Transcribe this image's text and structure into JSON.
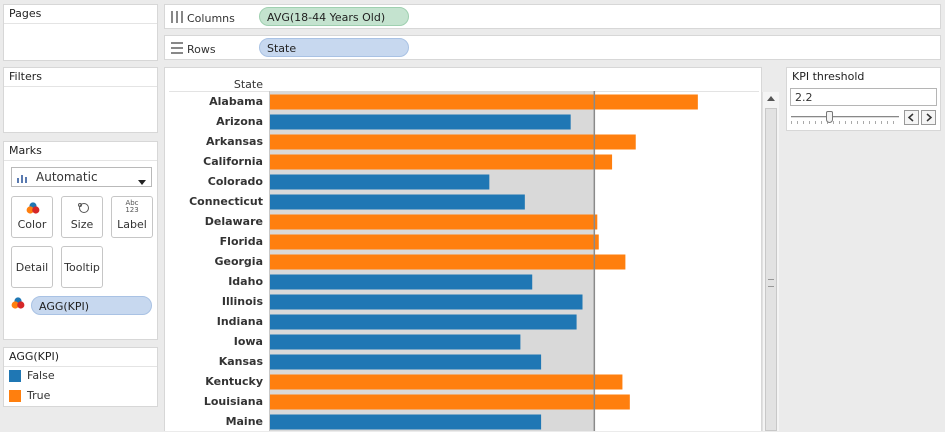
{
  "left_panel": {
    "pages_title": "Pages",
    "filters_title": "Filters",
    "marks_title": "Marks",
    "mark_type": "Automatic",
    "mark_buttons": {
      "color": "Color",
      "size": "Size",
      "label": "Label",
      "detail": "Detail",
      "tooltip": "Tooltip"
    },
    "label_icon_text": "Abc\n123",
    "color_field": "AGG(KPI)"
  },
  "legend": {
    "title": "AGG(KPI)",
    "items": [
      {
        "label": "False",
        "color": "#1f77b4"
      },
      {
        "label": "True",
        "color": "#ff7f0e"
      }
    ]
  },
  "shelves": {
    "columns_label": "Columns",
    "columns_pill": "AVG(18-44 Years Old)",
    "rows_label": "Rows",
    "rows_pill": "State"
  },
  "parameter": {
    "title": "KPI threshold",
    "value": "2.2",
    "slider_fraction": 0.35
  },
  "colors": {
    "true_bar": "#ff7f0e",
    "false_bar": "#1f77b4",
    "columns_pill_bg": "#c4e3cf",
    "rows_pill_bg": "#c7d8ef",
    "band": "#d9d9d9",
    "ref_line": "#8a8a8a"
  },
  "chart_data": {
    "type": "bar",
    "orientation": "horizontal",
    "row_header": "State",
    "categories": [
      "Alabama",
      "Arizona",
      "Arkansas",
      "California",
      "Colorado",
      "Connecticut",
      "Delaware",
      "Florida",
      "Georgia",
      "Idaho",
      "Illinois",
      "Indiana",
      "Iowa",
      "Kansas",
      "Kentucky",
      "Louisiana",
      "Maine"
    ],
    "values": [
      2.9,
      2.04,
      2.48,
      2.32,
      1.49,
      1.73,
      2.22,
      2.23,
      2.41,
      1.78,
      2.12,
      2.08,
      1.7,
      1.84,
      2.39,
      2.44,
      1.84
    ],
    "kpi": [
      true,
      false,
      true,
      true,
      false,
      false,
      true,
      true,
      true,
      false,
      false,
      false,
      false,
      false,
      true,
      true,
      false
    ],
    "reference_line": 2.2,
    "xlim": [
      0,
      3.3
    ],
    "grid": false
  }
}
